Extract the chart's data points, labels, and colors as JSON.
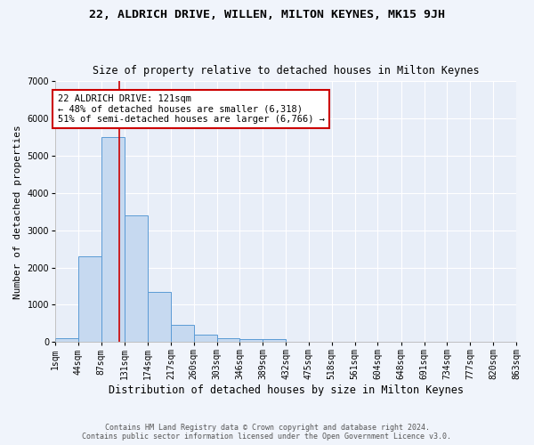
{
  "title": "22, ALDRICH DRIVE, WILLEN, MILTON KEYNES, MK15 9JH",
  "subtitle": "Size of property relative to detached houses in Milton Keynes",
  "xlabel": "Distribution of detached houses by size in Milton Keynes",
  "ylabel": "Number of detached properties",
  "footer_line1": "Contains HM Land Registry data © Crown copyright and database right 2024.",
  "footer_line2": "Contains public sector information licensed under the Open Government Licence v3.0.",
  "bin_labels": [
    "1sqm",
    "44sqm",
    "87sqm",
    "131sqm",
    "174sqm",
    "217sqm",
    "260sqm",
    "303sqm",
    "346sqm",
    "389sqm",
    "432sqm",
    "475sqm",
    "518sqm",
    "561sqm",
    "604sqm",
    "648sqm",
    "691sqm",
    "734sqm",
    "777sqm",
    "820sqm",
    "863sqm"
  ],
  "bar_values": [
    100,
    2300,
    5500,
    3400,
    1350,
    450,
    200,
    100,
    75,
    75,
    0,
    0,
    0,
    0,
    0,
    0,
    0,
    0,
    0,
    0
  ],
  "bin_edges": [
    1,
    44,
    87,
    131,
    174,
    217,
    260,
    303,
    346,
    389,
    432,
    475,
    518,
    561,
    604,
    648,
    691,
    734,
    777,
    820,
    863
  ],
  "bar_color": "#c6d9f0",
  "bar_edge_color": "#5b9bd5",
  "vline_x": 121,
  "vline_color": "#cc0000",
  "annotation_text": "22 ALDRICH DRIVE: 121sqm\n← 48% of detached houses are smaller (6,318)\n51% of semi-detached houses are larger (6,766) →",
  "annotation_box_color": "#cc0000",
  "background_color": "#f0f4fb",
  "plot_bg_color": "#e8eef8",
  "grid_color": "#ffffff",
  "ylim": [
    0,
    7000
  ],
  "title_fontsize": 9.5,
  "subtitle_fontsize": 8.5,
  "xlabel_fontsize": 8.5,
  "ylabel_fontsize": 8,
  "tick_fontsize": 7,
  "annotation_fontsize": 7.5,
  "footer_fontsize": 6
}
